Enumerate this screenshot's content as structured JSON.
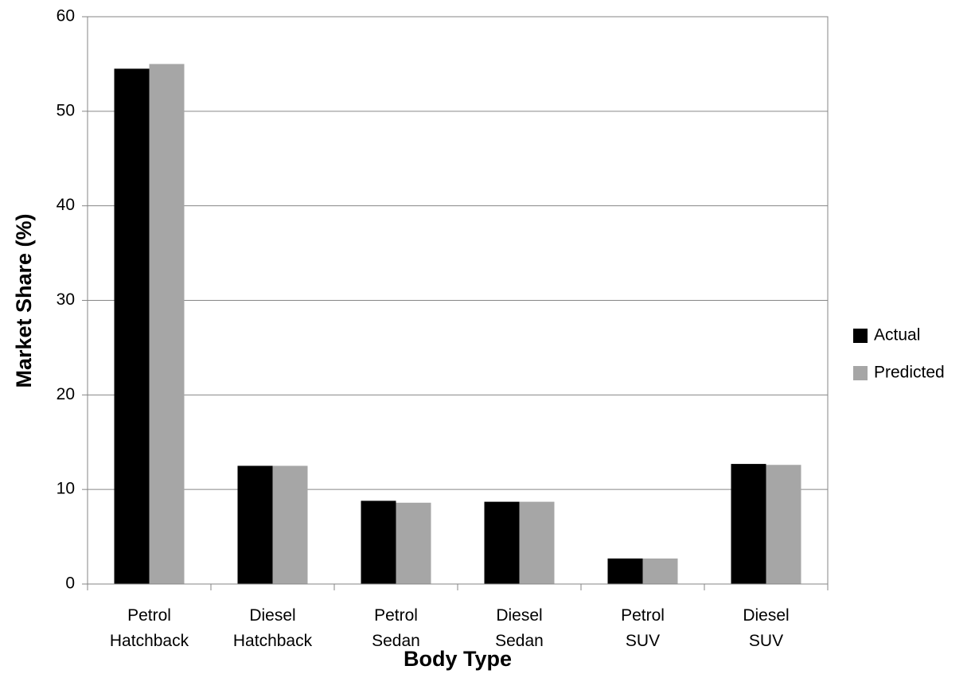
{
  "chart_data": {
    "type": "bar",
    "x_label": "Body Type",
    "y_label": "Market Share (%)",
    "categories": [
      "Petrol\nHatchback",
      "Diesel\nHatchback",
      "Petrol\nSedan",
      "Diesel\nSedan",
      "Petrol\nSUV",
      "Diesel\nSUV"
    ],
    "series": [
      {
        "name": "Actual",
        "color": "#000000",
        "values": [
          54.5,
          12.5,
          8.8,
          8.7,
          2.7,
          12.7
        ]
      },
      {
        "name": "Predicted",
        "color": "#a6a6a6",
        "values": [
          55,
          12.5,
          8.6,
          8.7,
          2.7,
          12.6
        ]
      }
    ],
    "ylim": [
      0,
      60
    ],
    "yticks": [
      0,
      10,
      20,
      30,
      40,
      50,
      60
    ],
    "grid": true,
    "legend": "right"
  }
}
